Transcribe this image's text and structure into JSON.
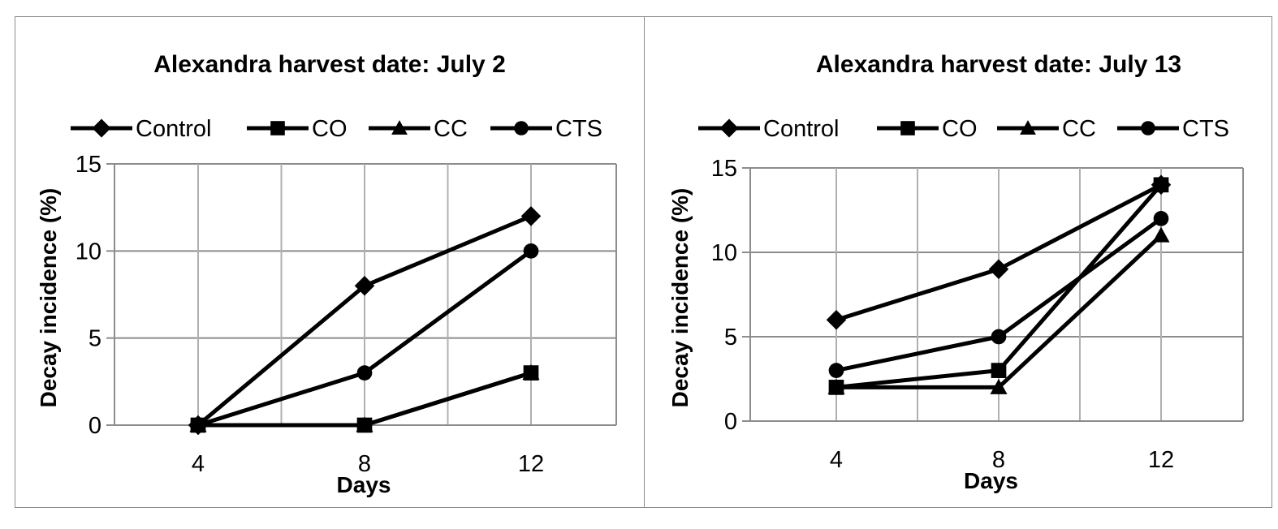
{
  "chart_data": [
    {
      "type": "line",
      "title": "Alexandra harvest date: July 2",
      "xlabel": "Days",
      "ylabel": "Decay incidence (%)",
      "x": [
        4,
        8,
        12
      ],
      "ylim": [
        0,
        15
      ],
      "yticks": [
        0,
        5,
        10,
        15
      ],
      "grid": true,
      "legend": "top",
      "series": [
        {
          "name": "Control",
          "marker": "diamond",
          "values": [
            0,
            8,
            12
          ]
        },
        {
          "name": "CO",
          "marker": "square",
          "values": [
            0,
            0,
            3
          ]
        },
        {
          "name": "CC",
          "marker": "triangle",
          "values": [
            0,
            0,
            3
          ]
        },
        {
          "name": "CTS",
          "marker": "circle",
          "values": [
            0,
            3,
            10
          ]
        }
      ]
    },
    {
      "type": "line",
      "title": "Alexandra harvest date: July 13",
      "xlabel": "Days",
      "ylabel": "Decay incidence (%)",
      "x": [
        4,
        8,
        12
      ],
      "ylim": [
        0,
        15
      ],
      "yticks": [
        0,
        5,
        10,
        15
      ],
      "grid": true,
      "legend": "top",
      "series": [
        {
          "name": "Control",
          "marker": "diamond",
          "values": [
            6,
            9,
            14
          ]
        },
        {
          "name": "CO",
          "marker": "square",
          "values": [
            2,
            3,
            14
          ]
        },
        {
          "name": "CC",
          "marker": "triangle",
          "values": [
            2,
            2,
            11
          ]
        },
        {
          "name": "CTS",
          "marker": "circle",
          "values": [
            3,
            5,
            12
          ]
        }
      ]
    }
  ]
}
